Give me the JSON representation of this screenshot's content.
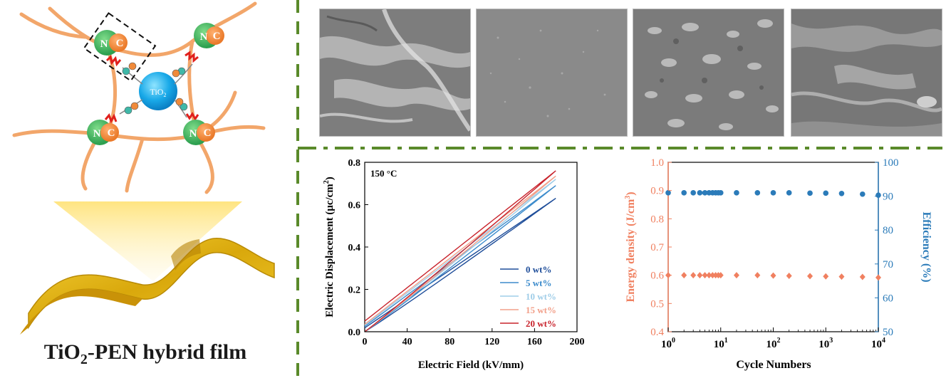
{
  "schematic": {
    "title_main": "TiO",
    "title_sub": "2",
    "title_rest": "-PEN hybrid film",
    "particle_label_main": "TiO",
    "particle_label_sub": "2",
    "atom_n": "N",
    "atom_c": "C"
  },
  "sem_panels": [
    {
      "style": "fracture"
    },
    {
      "style": "smooth"
    },
    {
      "style": "textured"
    },
    {
      "style": "rough"
    }
  ],
  "colors": {
    "divider": "#5a8a2a",
    "eff_blue": "#2b7bb9",
    "energy_orange": "#f08060",
    "film_gold": "#e0b020",
    "fiber": "#f0a060"
  },
  "chart_data": [
    {
      "type": "line",
      "annotation": "150 °C",
      "xlabel": "Electric Field (kV/mm)",
      "ylabel": "Electric Displacement (μc/cm²)",
      "ylabel_main": "Electric Displacement (μc/cm",
      "ylabel_sup": "2",
      "ylabel_end": ")",
      "xlim": [
        0,
        200
      ],
      "ylim": [
        0,
        0.8
      ],
      "xticks": [
        "0",
        "40",
        "80",
        "120",
        "160",
        "200"
      ],
      "yticks": [
        "0.0",
        "0.2",
        "0.4",
        "0.6",
        "0.8"
      ],
      "legend_position": "bottom-right",
      "series": [
        {
          "name": "0 wt%",
          "color": "#1f4e9a",
          "e_max": 180,
          "d_max": 0.63,
          "d_remnant": 0.018
        },
        {
          "name": "5 wt%",
          "color": "#3d8ccc",
          "e_max": 180,
          "d_max": 0.69,
          "d_remnant": 0.025
        },
        {
          "name": "10 wt%",
          "color": "#9fcde8",
          "e_max": 180,
          "d_max": 0.72,
          "d_remnant": 0.03
        },
        {
          "name": "15 wt%",
          "color": "#f2a08a",
          "e_max": 180,
          "d_max": 0.735,
          "d_remnant": 0.035
        },
        {
          "name": "20 wt%",
          "color": "#c8232c",
          "e_max": 180,
          "d_max": 0.76,
          "d_remnant": 0.05
        }
      ]
    },
    {
      "type": "scatter",
      "xlabel": "Cycle Numbers",
      "ylabel_left": "Energy density (J/cm³)",
      "ylabel_left_main": "Energy density (J/cm",
      "ylabel_left_sup": "3",
      "ylabel_left_end": ")",
      "ylabel_right": "Efficiency (%)",
      "xscale": "log",
      "xlim": [
        1,
        10000
      ],
      "ylim_left": [
        0.4,
        1.0
      ],
      "ylim_right": [
        50,
        100
      ],
      "xticks": [
        {
          "base": "10",
          "exp": "0"
        },
        {
          "base": "10",
          "exp": "1"
        },
        {
          "base": "10",
          "exp": "2"
        },
        {
          "base": "10",
          "exp": "3"
        },
        {
          "base": "10",
          "exp": "4"
        }
      ],
      "yticks_left": [
        "0.4",
        "0.5",
        "0.6",
        "0.7",
        "0.8",
        "0.9",
        "1.0"
      ],
      "yticks_right": [
        "50",
        "60",
        "70",
        "80",
        "90",
        "100"
      ],
      "series": [
        {
          "name": "Efficiency",
          "axis": "right",
          "marker": "circle",
          "color": "#2b7bb9",
          "x": [
            1,
            2,
            3,
            4,
            5,
            6,
            7,
            8,
            9,
            10,
            20,
            50,
            100,
            200,
            500,
            1000,
            2000,
            5000,
            10000
          ],
          "y": [
            91.0,
            91.0,
            91.0,
            91.0,
            91.0,
            91.0,
            91.0,
            91.0,
            91.0,
            91.0,
            91.0,
            91.0,
            91.0,
            91.0,
            90.9,
            90.9,
            90.8,
            90.6,
            90.3
          ]
        },
        {
          "name": "Energy density",
          "axis": "left",
          "marker": "diamond",
          "color": "#f08060",
          "x": [
            1,
            2,
            3,
            4,
            5,
            6,
            7,
            8,
            9,
            10,
            20,
            50,
            100,
            200,
            500,
            1000,
            2000,
            5000,
            10000
          ],
          "y": [
            0.6,
            0.6,
            0.6,
            0.6,
            0.6,
            0.6,
            0.6,
            0.6,
            0.6,
            0.6,
            0.6,
            0.6,
            0.599,
            0.598,
            0.597,
            0.596,
            0.595,
            0.594,
            0.592
          ]
        }
      ]
    }
  ]
}
